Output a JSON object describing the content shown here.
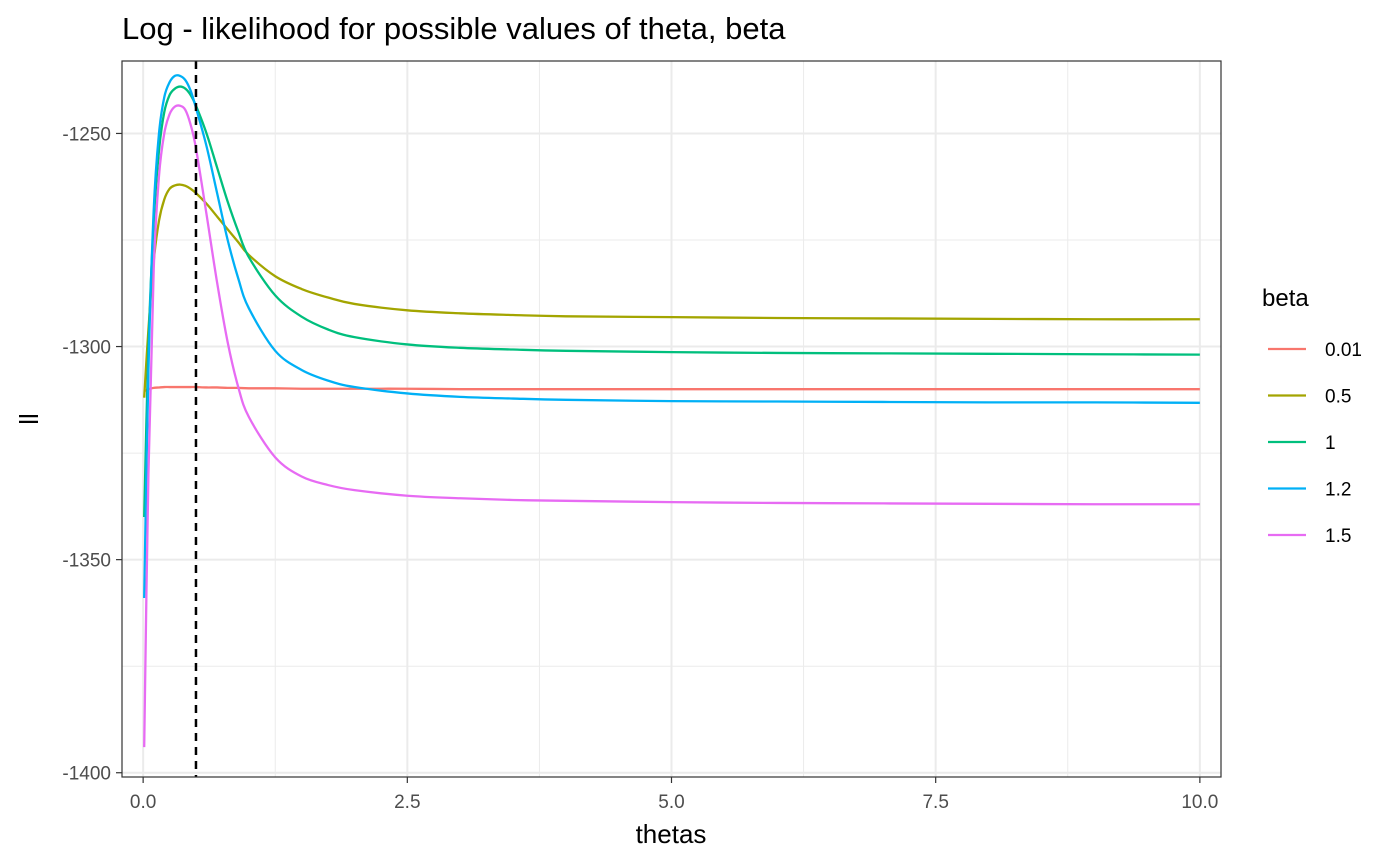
{
  "chart_data": {
    "type": "line",
    "title": "Log - likelihood for possible values of theta, beta",
    "xlabel": "thetas",
    "ylabel": "ll",
    "xlim": [
      -0.2,
      10.2
    ],
    "ylim": [
      -1401,
      -1233
    ],
    "x_ticks": [
      0.0,
      2.5,
      5.0,
      7.5,
      10.0
    ],
    "x_tick_labels": [
      "0.0",
      "2.5",
      "5.0",
      "7.5",
      "10.0"
    ],
    "y_ticks": [
      -1400,
      -1350,
      -1300,
      -1250
    ],
    "y_tick_labels": [
      "-1400",
      "-1350",
      "-1300",
      "-1250"
    ],
    "grid": true,
    "legend": {
      "title": "beta",
      "position": "right"
    },
    "reference_line": {
      "x": 0.5,
      "style": "dashed",
      "color": "#000000"
    },
    "x": [
      0.01,
      0.05,
      0.1,
      0.15,
      0.2,
      0.25,
      0.3,
      0.35,
      0.4,
      0.45,
      0.5,
      0.6,
      0.7,
      0.8,
      0.9,
      1.0,
      1.25,
      1.5,
      1.75,
      2.0,
      2.5,
      3.0,
      3.5,
      4.0,
      5.0,
      6.0,
      7.0,
      8.0,
      9.0,
      10.0
    ],
    "series": [
      {
        "name": "0.01",
        "color": "#F8766D",
        "values": [
          -1310.5,
          -1310.0,
          -1309.7,
          -1309.6,
          -1309.5,
          -1309.5,
          -1309.5,
          -1309.5,
          -1309.5,
          -1309.5,
          -1309.5,
          -1309.6,
          -1309.6,
          -1309.7,
          -1309.7,
          -1309.8,
          -1309.8,
          -1309.9,
          -1309.9,
          -1309.9,
          -1309.9,
          -1310.0,
          -1310.0,
          -1310.0,
          -1310.0,
          -1310.0,
          -1310.0,
          -1310.0,
          -1310.0,
          -1310.0
        ]
      },
      {
        "name": "0.5",
        "color": "#A3A500",
        "values": [
          -1312.0,
          -1296.0,
          -1280.0,
          -1270.5,
          -1265.5,
          -1263.0,
          -1262.2,
          -1262.0,
          -1262.3,
          -1263.0,
          -1264.0,
          -1266.5,
          -1269.5,
          -1272.5,
          -1275.5,
          -1278.5,
          -1283.5,
          -1286.5,
          -1288.5,
          -1290.0,
          -1291.5,
          -1292.2,
          -1292.6,
          -1292.9,
          -1293.1,
          -1293.3,
          -1293.4,
          -1293.5,
          -1293.6,
          -1293.6
        ]
      },
      {
        "name": "1",
        "color": "#00BF7D",
        "values": [
          -1340.0,
          -1300.0,
          -1271.0,
          -1254.0,
          -1245.0,
          -1241.0,
          -1239.5,
          -1239.0,
          -1239.5,
          -1241.0,
          -1243.5,
          -1250.0,
          -1258.0,
          -1266.0,
          -1273.0,
          -1279.0,
          -1288.0,
          -1293.0,
          -1296.0,
          -1297.8,
          -1299.5,
          -1300.3,
          -1300.7,
          -1301.0,
          -1301.3,
          -1301.5,
          -1301.6,
          -1301.7,
          -1301.8,
          -1301.9
        ]
      },
      {
        "name": "1.2",
        "color": "#00B0F6",
        "values": [
          -1359.0,
          -1306.0,
          -1268.0,
          -1250.0,
          -1241.5,
          -1238.0,
          -1236.5,
          -1236.5,
          -1237.5,
          -1240.0,
          -1244.0,
          -1253.0,
          -1264.0,
          -1275.0,
          -1284.0,
          -1291.0,
          -1301.0,
          -1305.5,
          -1308.0,
          -1309.5,
          -1311.0,
          -1311.8,
          -1312.2,
          -1312.5,
          -1312.8,
          -1312.9,
          -1313.0,
          -1313.1,
          -1313.1,
          -1313.2
        ]
      },
      {
        "name": "1.5",
        "color": "#E76BF3",
        "values": [
          -1394.0,
          -1330.0,
          -1282.0,
          -1260.0,
          -1250.0,
          -1245.5,
          -1243.7,
          -1243.5,
          -1244.5,
          -1248.0,
          -1253.5,
          -1269.0,
          -1285.0,
          -1299.0,
          -1309.5,
          -1316.5,
          -1326.0,
          -1330.5,
          -1332.5,
          -1333.7,
          -1335.0,
          -1335.6,
          -1336.0,
          -1336.2,
          -1336.5,
          -1336.7,
          -1336.8,
          -1336.9,
          -1337.0,
          -1337.0
        ]
      }
    ]
  }
}
